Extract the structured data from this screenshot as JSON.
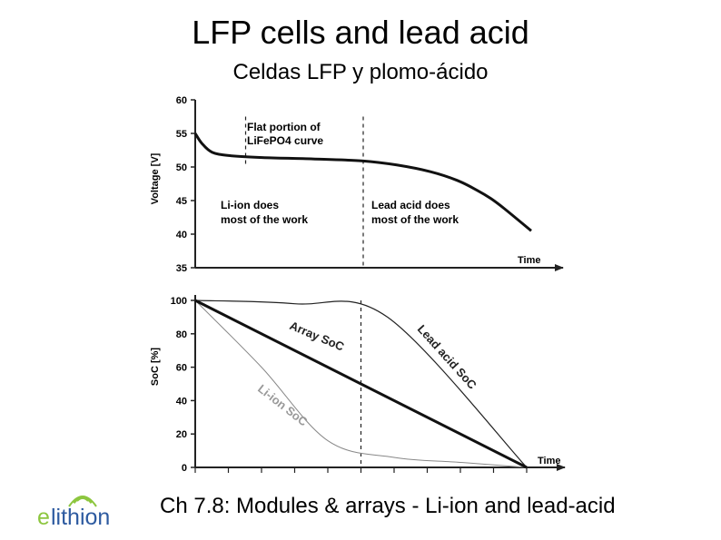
{
  "slide": {
    "title": "LFP cells and lead acid",
    "subtitle": "Celdas LFP y plomo-ácido",
    "footer": "Ch 7.8: Modules & arrays - Li-ion and lead-acid",
    "logo_text": "elithion"
  },
  "colors": {
    "logo_green": "#8dc63f",
    "logo_blue": "#2d5aa0"
  },
  "chart_data": [
    {
      "type": "line",
      "title": "",
      "ylabel": "Voltage [V]",
      "xlabel": "Time",
      "ylim": [
        35,
        60
      ],
      "yticks": [
        60,
        55,
        50,
        45,
        40,
        35
      ],
      "xlim": [
        0,
        100
      ],
      "grid": false,
      "series": [
        {
          "name": "",
          "x": [
            0,
            2,
            5,
            10,
            20,
            35,
            50,
            60,
            70,
            78,
            84,
            88,
            92,
            100
          ],
          "y": [
            55,
            53.5,
            52.2,
            51.7,
            51.4,
            51.2,
            50.9,
            50.3,
            49.3,
            48,
            46.5,
            45.3,
            43.8,
            40.5
          ]
        }
      ],
      "vlines": [
        {
          "x": 15,
          "y_range": [
            50,
            57.5
          ]
        },
        {
          "x": 50,
          "y_range": [
            35,
            57.5
          ]
        }
      ],
      "annotations": [
        {
          "lines": [
            "Flat portion of",
            "LiFePO4 curve"
          ]
        },
        {
          "lines": [
            "Li-ion does",
            "most of the work"
          ]
        },
        {
          "lines": [
            "Lead acid does",
            "most of the work"
          ]
        }
      ]
    },
    {
      "type": "line",
      "title": "",
      "ylabel": "SoC [%]",
      "xlabel": "Time",
      "ylim": [
        0,
        100
      ],
      "yticks": [
        100,
        80,
        60,
        40,
        20,
        0
      ],
      "xlim": [
        0,
        100
      ],
      "grid": false,
      "series": [
        {
          "name": "Array SoC",
          "x": [
            0,
            100
          ],
          "y": [
            100,
            0
          ]
        },
        {
          "name": "Lead acid SoC",
          "x": [
            0,
            30,
            58,
            100
          ],
          "y": [
            100,
            98,
            90,
            0
          ]
        },
        {
          "name": "Li-ion SoC",
          "x": [
            0,
            20,
            40,
            60,
            80,
            100
          ],
          "y": [
            100,
            60,
            16,
            6,
            3,
            0
          ]
        }
      ],
      "vlines": [
        {
          "x": 50,
          "y_range": [
            0,
            100
          ]
        }
      ]
    }
  ]
}
